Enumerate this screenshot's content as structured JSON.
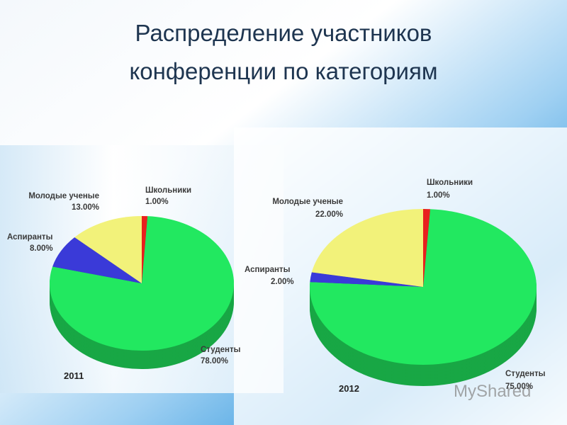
{
  "title": "Распределение участников конференции по категориям",
  "watermark": "MyShared",
  "chart_data": [
    {
      "type": "pie",
      "title": "2011",
      "categories": [
        "Школьники",
        "Студенты",
        "Аспиранты",
        "Молодые ученые"
      ],
      "values": [
        1,
        78,
        8,
        13
      ],
      "value_labels": [
        "1.00%",
        "78.00%",
        "8.00%",
        "13.00%"
      ],
      "colors": [
        "#e8201e",
        "#22e860",
        "#3a3ad8",
        "#f2f27a"
      ]
    },
    {
      "type": "pie",
      "title": "2012",
      "categories": [
        "Школьники",
        "Студенты",
        "Аспиранты",
        "Молодые ученые"
      ],
      "values": [
        1,
        75,
        2,
        22
      ],
      "value_labels": [
        "1.00%",
        "75.00%",
        "2.00%",
        "22.00%"
      ],
      "colors": [
        "#e8201e",
        "#22e860",
        "#3a3ad8",
        "#f2f27a"
      ]
    }
  ]
}
